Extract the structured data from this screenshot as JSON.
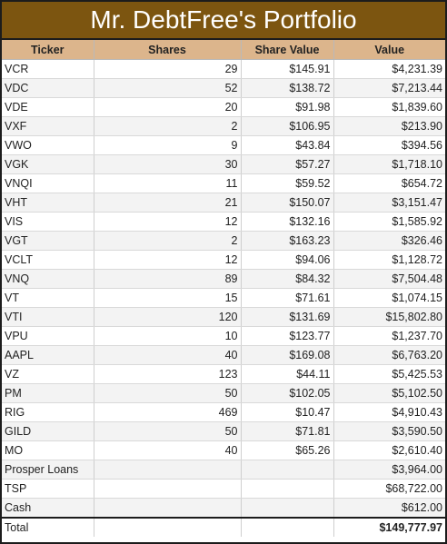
{
  "title": "Mr. DebtFree's Portfolio",
  "columns": [
    "Ticker",
    "Shares",
    "Share Value",
    "Value"
  ],
  "rows": [
    {
      "ticker": "VCR",
      "shares": "29",
      "price": "$145.91",
      "value": "$4,231.39"
    },
    {
      "ticker": "VDC",
      "shares": "52",
      "price": "$138.72",
      "value": "$7,213.44"
    },
    {
      "ticker": "VDE",
      "shares": "20",
      "price": "$91.98",
      "value": "$1,839.60"
    },
    {
      "ticker": "VXF",
      "shares": "2",
      "price": "$106.95",
      "value": "$213.90"
    },
    {
      "ticker": "VWO",
      "shares": "9",
      "price": "$43.84",
      "value": "$394.56"
    },
    {
      "ticker": "VGK",
      "shares": "30",
      "price": "$57.27",
      "value": "$1,718.10"
    },
    {
      "ticker": "VNQI",
      "shares": "11",
      "price": "$59.52",
      "value": "$654.72"
    },
    {
      "ticker": "VHT",
      "shares": "21",
      "price": "$150.07",
      "value": "$3,151.47"
    },
    {
      "ticker": "VIS",
      "shares": "12",
      "price": "$132.16",
      "value": "$1,585.92"
    },
    {
      "ticker": "VGT",
      "shares": "2",
      "price": "$163.23",
      "value": "$326.46"
    },
    {
      "ticker": "VCLT",
      "shares": "12",
      "price": "$94.06",
      "value": "$1,128.72"
    },
    {
      "ticker": "VNQ",
      "shares": "89",
      "price": "$84.32",
      "value": "$7,504.48"
    },
    {
      "ticker": "VT",
      "shares": "15",
      "price": "$71.61",
      "value": "$1,074.15"
    },
    {
      "ticker": "VTI",
      "shares": "120",
      "price": "$131.69",
      "value": "$15,802.80"
    },
    {
      "ticker": "VPU",
      "shares": "10",
      "price": "$123.77",
      "value": "$1,237.70"
    },
    {
      "ticker": "AAPL",
      "shares": "40",
      "price": "$169.08",
      "value": "$6,763.20"
    },
    {
      "ticker": "VZ",
      "shares": "123",
      "price": "$44.11",
      "value": "$5,425.53"
    },
    {
      "ticker": "PM",
      "shares": "50",
      "price": "$102.05",
      "value": "$5,102.50"
    },
    {
      "ticker": "RIG",
      "shares": "469",
      "price": "$10.47",
      "value": "$4,910.43"
    },
    {
      "ticker": "GILD",
      "shares": "50",
      "price": "$71.81",
      "value": "$3,590.50"
    },
    {
      "ticker": "MO",
      "shares": "40",
      "price": "$65.26",
      "value": "$2,610.40"
    },
    {
      "ticker": "Prosper Loans",
      "shares": "",
      "price": "",
      "value": "$3,964.00"
    },
    {
      "ticker": "TSP",
      "shares": "",
      "price": "",
      "value": "$68,722.00"
    },
    {
      "ticker": "Cash",
      "shares": "",
      "price": "",
      "value": "$612.00"
    }
  ],
  "total": {
    "label": "Total",
    "value": "$149,777.97"
  },
  "colors": {
    "title_bg": "#7c5510",
    "header_bg": "#dcb58c",
    "stripe": "#f3f3f3"
  }
}
